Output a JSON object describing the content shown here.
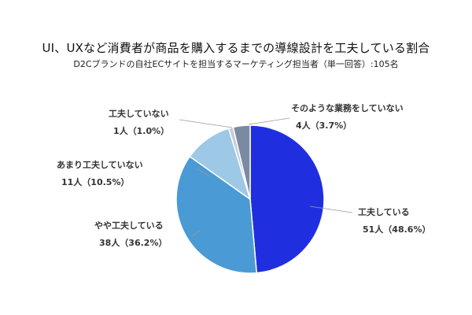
{
  "chart_data": {
    "type": "pie",
    "title": "UI、UXなど消費者が商品を購入するまでの導線設計を工夫している割合",
    "subtitle": "D2Cブランドの自社ECサイトを担当するマーケティング担当者（単一回答）:105名",
    "slices": [
      {
        "label": "工夫している",
        "count_label": "51人（48.6%）",
        "count": 51,
        "percent": 48.6,
        "color": "#1f2fe0"
      },
      {
        "label": "やや工夫している",
        "count_label": "38人（36.2%）",
        "count": 38,
        "percent": 36.2,
        "color": "#4a9ad6"
      },
      {
        "label": "あまり工夫していない",
        "count_label": "11人（10.5%）",
        "count": 11,
        "percent": 10.5,
        "color": "#9dc8e6"
      },
      {
        "label": "工夫していない",
        "count_label": "1人（1.0%）",
        "count": 1,
        "percent": 1.0,
        "color": "#c5ccd6"
      },
      {
        "label": "そのような業務をしていない",
        "count_label": "4人（3.7%）",
        "count": 4,
        "percent": 3.7,
        "color": "#7b8aa3"
      }
    ]
  }
}
